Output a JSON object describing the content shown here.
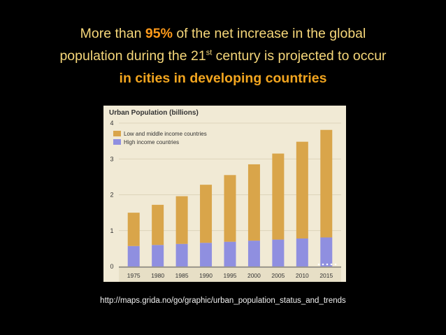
{
  "headline": {
    "line1_pre": "More than ",
    "line1_accent": "95%",
    "line1_post": " of the net increase in the global",
    "line2_pre": "population during the 21",
    "line2_sup": "st",
    "line2_post": " century is projected to occur",
    "line3": "in cities in developing countries"
  },
  "source_url": "http://maps.grida.no/go/graphic/urban_population_status_and_trends",
  "colors": {
    "low_middle": "#d9a54a",
    "high": "#8f8fe0",
    "panel_bg": "#f1ead5",
    "headline_text": "#f6d77a",
    "accent": "#ff9a1a"
  },
  "chart_data": {
    "type": "bar",
    "stacked": true,
    "title": "Urban Population (billions)",
    "categories": [
      "1975",
      "1980",
      "1985",
      "1990",
      "1995",
      "2000",
      "2005",
      "2010",
      "2015"
    ],
    "series": [
      {
        "name": "High income countries",
        "values": [
          0.57,
          0.6,
          0.63,
          0.66,
          0.69,
          0.72,
          0.75,
          0.78,
          0.81
        ]
      },
      {
        "name": "Low and middle income countries",
        "values": [
          0.93,
          1.12,
          1.33,
          1.62,
          1.86,
          2.13,
          2.4,
          2.7,
          3.0
        ]
      }
    ],
    "ylim": [
      0,
      4
    ],
    "yticks": [
      0,
      1,
      2,
      3,
      4
    ],
    "legend": [
      "Low and middle income countries",
      "High income countries"
    ],
    "legend_position": "top-left",
    "grid": true
  }
}
